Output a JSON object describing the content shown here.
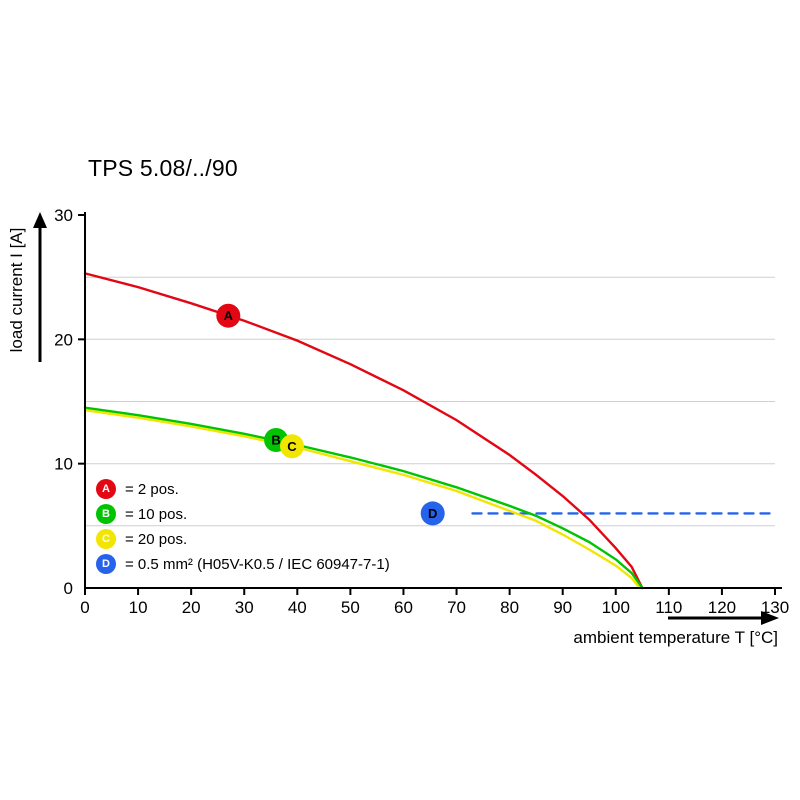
{
  "page": {
    "title": "TPS 5.08/../90"
  },
  "chart_data": {
    "type": "line",
    "title": "TPS 5.08/../90",
    "xlabel": "ambient temperature T [°C]",
    "ylabel": "load current I [A]",
    "xlim": [
      0,
      130
    ],
    "ylim": [
      0,
      30
    ],
    "x_ticks": [
      0,
      10,
      20,
      30,
      40,
      50,
      60,
      70,
      80,
      90,
      100,
      110,
      120,
      130
    ],
    "y_ticks": [
      0,
      10,
      20,
      30
    ],
    "y_gridlines": [
      5,
      10,
      15,
      20,
      25
    ],
    "grid": "horizontal",
    "legend_position": "inside bottom-left",
    "series": [
      {
        "id": "A",
        "label": "= 2 pos.",
        "color": "#e30613",
        "style": "solid",
        "points": [
          [
            0,
            25.3
          ],
          [
            10,
            24.2
          ],
          [
            20,
            22.9
          ],
          [
            30,
            21.5
          ],
          [
            40,
            19.9
          ],
          [
            50,
            18.0
          ],
          [
            60,
            15.9
          ],
          [
            70,
            13.5
          ],
          [
            80,
            10.7
          ],
          [
            85,
            9.1
          ],
          [
            90,
            7.4
          ],
          [
            95,
            5.5
          ],
          [
            100,
            3.2
          ],
          [
            103,
            1.7
          ],
          [
            105,
            0
          ]
        ],
        "marker": {
          "x": 27,
          "y": 21.9
        }
      },
      {
        "id": "B",
        "label": "= 10 pos.",
        "color": "#00c400",
        "style": "solid",
        "points": [
          [
            0,
            14.5
          ],
          [
            10,
            13.9
          ],
          [
            20,
            13.2
          ],
          [
            30,
            12.4
          ],
          [
            40,
            11.5
          ],
          [
            50,
            10.5
          ],
          [
            60,
            9.4
          ],
          [
            70,
            8.1
          ],
          [
            80,
            6.6
          ],
          [
            85,
            5.8
          ],
          [
            90,
            4.8
          ],
          [
            95,
            3.7
          ],
          [
            100,
            2.3
          ],
          [
            103,
            1.2
          ],
          [
            105,
            0
          ]
        ],
        "marker": {
          "x": 36,
          "y": 11.9
        }
      },
      {
        "id": "C",
        "label": "= 20 pos.",
        "color": "#f2e500",
        "style": "solid",
        "points": [
          [
            0,
            14.3
          ],
          [
            10,
            13.7
          ],
          [
            20,
            13.0
          ],
          [
            30,
            12.2
          ],
          [
            40,
            11.3
          ],
          [
            50,
            10.2
          ],
          [
            60,
            9.1
          ],
          [
            70,
            7.8
          ],
          [
            80,
            6.2
          ],
          [
            85,
            5.4
          ],
          [
            90,
            4.3
          ],
          [
            95,
            3.1
          ],
          [
            100,
            1.8
          ],
          [
            103,
            0.8
          ],
          [
            104.5,
            0
          ]
        ],
        "marker": {
          "x": 39,
          "y": 11.4
        }
      },
      {
        "id": "D",
        "label": "= 0.5 mm² (H05V-K0.5 / IEC 60947-7-1)",
        "color": "#2563eb",
        "style": "dashed",
        "points": [
          [
            73,
            6
          ],
          [
            129.5,
            6
          ]
        ],
        "marker": {
          "x": 65.5,
          "y": 6
        }
      }
    ]
  }
}
